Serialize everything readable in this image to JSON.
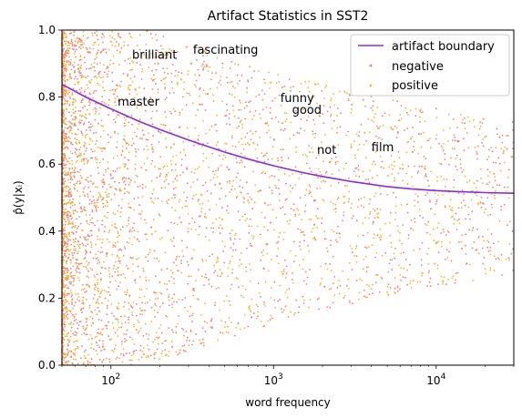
{
  "chart_data": {
    "type": "scatter",
    "title": "Artifact Statistics in SST2",
    "xlabel": "word frequency",
    "ylabel": "p̂(y|xᵢ)",
    "x_scale": "log",
    "xlim": [
      50,
      30000
    ],
    "ylim": [
      0,
      1
    ],
    "x_ticks": [
      {
        "value": 100,
        "base": "10",
        "exp": "2"
      },
      {
        "value": 1000,
        "base": "10",
        "exp": "3"
      },
      {
        "value": 10000,
        "base": "10",
        "exp": "4"
      }
    ],
    "y_ticks": [
      {
        "value": 0.0,
        "label": "0.0"
      },
      {
        "value": 0.2,
        "label": "0.2"
      },
      {
        "value": 0.4,
        "label": "0.4"
      },
      {
        "value": 0.6,
        "label": "0.6"
      },
      {
        "value": 0.8,
        "label": "0.8"
      },
      {
        "value": 1.0,
        "label": "1.0"
      }
    ],
    "grid": false,
    "legend_position": "top-right",
    "boundary": {
      "name": "artifact boundary",
      "color": "#8a2be2",
      "points": [
        [
          50,
          0.838
        ],
        [
          70,
          0.8
        ],
        [
          100,
          0.765
        ],
        [
          150,
          0.727
        ],
        [
          200,
          0.703
        ],
        [
          300,
          0.672
        ],
        [
          500,
          0.636
        ],
        [
          700,
          0.615
        ],
        [
          1000,
          0.595
        ],
        [
          1500,
          0.575
        ],
        [
          2000,
          0.563
        ],
        [
          3000,
          0.548
        ],
        [
          5000,
          0.533
        ],
        [
          7000,
          0.526
        ],
        [
          10000,
          0.521
        ],
        [
          15000,
          0.517
        ],
        [
          20000,
          0.515
        ],
        [
          30000,
          0.513
        ]
      ]
    },
    "series": [
      {
        "name": "negative",
        "color": "#f47c7c"
      },
      {
        "name": "positive",
        "color": "#f9b233"
      }
    ],
    "words": [
      {
        "text": "brilliant",
        "x": 135,
        "y": 0.915
      },
      {
        "text": "fascinating",
        "x": 320,
        "y": 0.93
      },
      {
        "text": "master",
        "x": 110,
        "y": 0.775
      },
      {
        "text": "funny",
        "x": 1100,
        "y": 0.785
      },
      {
        "text": "good",
        "x": 1300,
        "y": 0.75
      },
      {
        "text": "not",
        "x": 1850,
        "y": 0.63
      },
      {
        "text": "film",
        "x": 4000,
        "y": 0.638
      }
    ],
    "scatter_note": "dense cloud of points: many low-frequency words spanning full 0-1 range, thinning out as frequency increases, clustering near 0.4-0.6 at high frequency"
  }
}
